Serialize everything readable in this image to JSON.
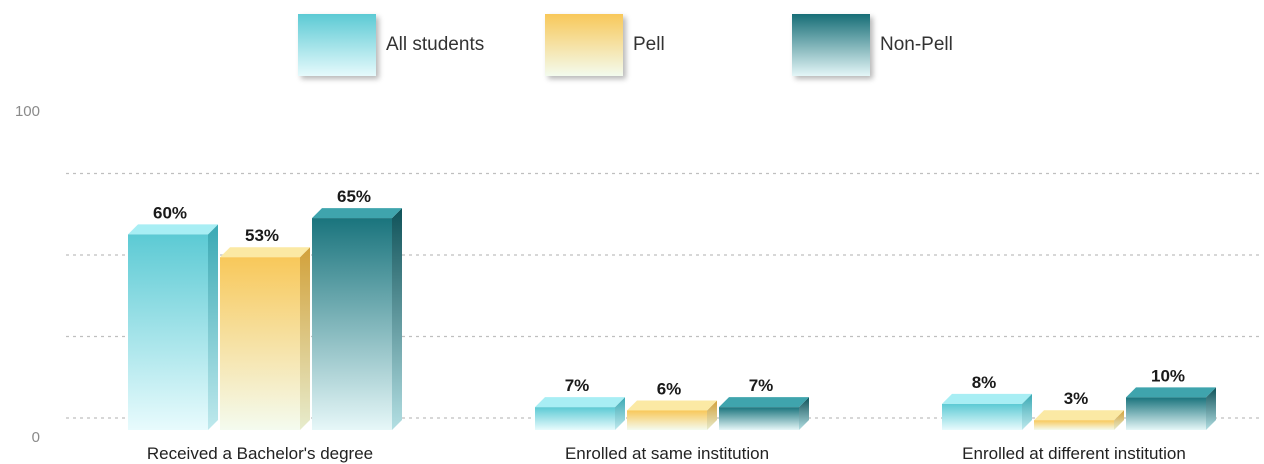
{
  "legend": {
    "items": [
      {
        "label": "All students",
        "color": "#6fcfd8"
      },
      {
        "label": "Pell",
        "color": "#f7c95c"
      },
      {
        "label": "Non-Pell",
        "color": "#1c7f88"
      }
    ]
  },
  "chart_data": {
    "type": "bar",
    "title": "",
    "xlabel": "",
    "ylabel": "",
    "ylim": [
      0,
      100
    ],
    "yticks": [
      "0",
      "100"
    ],
    "grid": true,
    "legend_position": "top",
    "categories": [
      "Received a Bachelor's degree",
      "Enrolled at same institution",
      "Enrolled at different institution"
    ],
    "series": [
      {
        "name": "All students",
        "values": [
          60,
          7,
          8
        ],
        "labels": [
          "60%",
          "7%",
          "8%"
        ]
      },
      {
        "name": "Pell",
        "values": [
          53,
          6,
          3
        ],
        "labels": [
          "53%",
          "6%",
          "3%"
        ]
      },
      {
        "name": "Non-Pell",
        "values": [
          65,
          7,
          10
        ],
        "labels": [
          "65%",
          "7%",
          "10%"
        ]
      }
    ]
  }
}
